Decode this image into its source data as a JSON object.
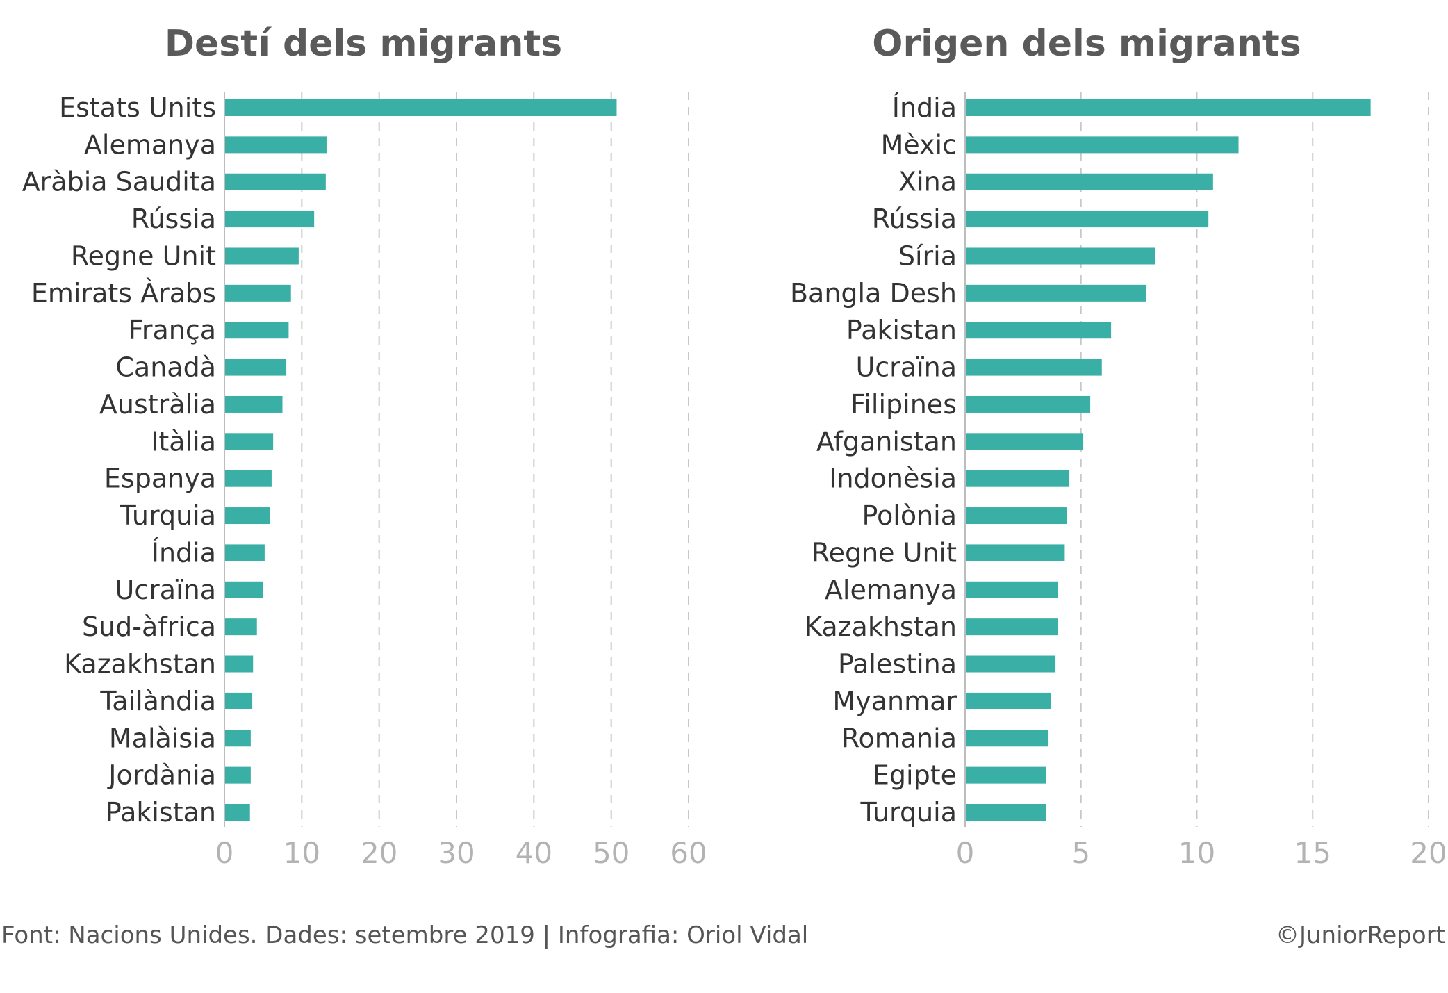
{
  "colors": {
    "bar": "#3aafa5",
    "title": "#5a5a5a",
    "label": "#333333",
    "tick": "#b3b3b3",
    "grid": "#c8c8c8"
  },
  "footer": {
    "source": "Font: Nacions Unides. Dades: setembre 2019 | Infografia: Oriol Vidal",
    "credit": "©JuniorReport"
  },
  "chart_data": [
    {
      "type": "bar",
      "orientation": "horizontal",
      "title": "Destí dels migrants",
      "xlim": [
        0,
        60
      ],
      "xticks": [
        0,
        10,
        20,
        30,
        40,
        50,
        60
      ],
      "grid": "vertical dashed",
      "categories": [
        "Estats Units",
        "Alemanya",
        "Aràbia Saudita",
        "Rússia",
        "Regne Unit",
        "Emirats Àrabs",
        "França",
        "Canadà",
        "Austràlia",
        "Itàlia",
        "Espanya",
        "Turquia",
        "Índia",
        "Ucraïna",
        "Sud-àfrica",
        "Kazakhstan",
        "Tailàndia",
        "Malàisia",
        "Jordània",
        "Pakistan"
      ],
      "values": [
        50.7,
        13.2,
        13.1,
        11.6,
        9.6,
        8.6,
        8.3,
        8.0,
        7.5,
        6.3,
        6.1,
        5.9,
        5.2,
        5.0,
        4.2,
        3.7,
        3.6,
        3.4,
        3.4,
        3.3
      ]
    },
    {
      "type": "bar",
      "orientation": "horizontal",
      "title": "Origen dels migrants",
      "xlim": [
        0,
        20
      ],
      "xticks": [
        0,
        5,
        10,
        15,
        20
      ],
      "grid": "vertical dashed",
      "categories": [
        "Índia",
        "Mèxic",
        "Xina",
        "Rússia",
        "Síria",
        "Bangla Desh",
        "Pakistan",
        "Ucraïna",
        "Filipines",
        "Afganistan",
        "Indonèsia",
        "Polònia",
        "Regne Unit",
        "Alemanya",
        "Kazakhstan",
        "Palestina",
        "Myanmar",
        "Romania",
        "Egipte",
        "Turquia"
      ],
      "values": [
        17.5,
        11.8,
        10.7,
        10.5,
        8.2,
        7.8,
        6.3,
        5.9,
        5.4,
        5.1,
        4.5,
        4.4,
        4.3,
        4.0,
        4.0,
        3.9,
        3.7,
        3.6,
        3.5,
        3.5
      ]
    }
  ]
}
